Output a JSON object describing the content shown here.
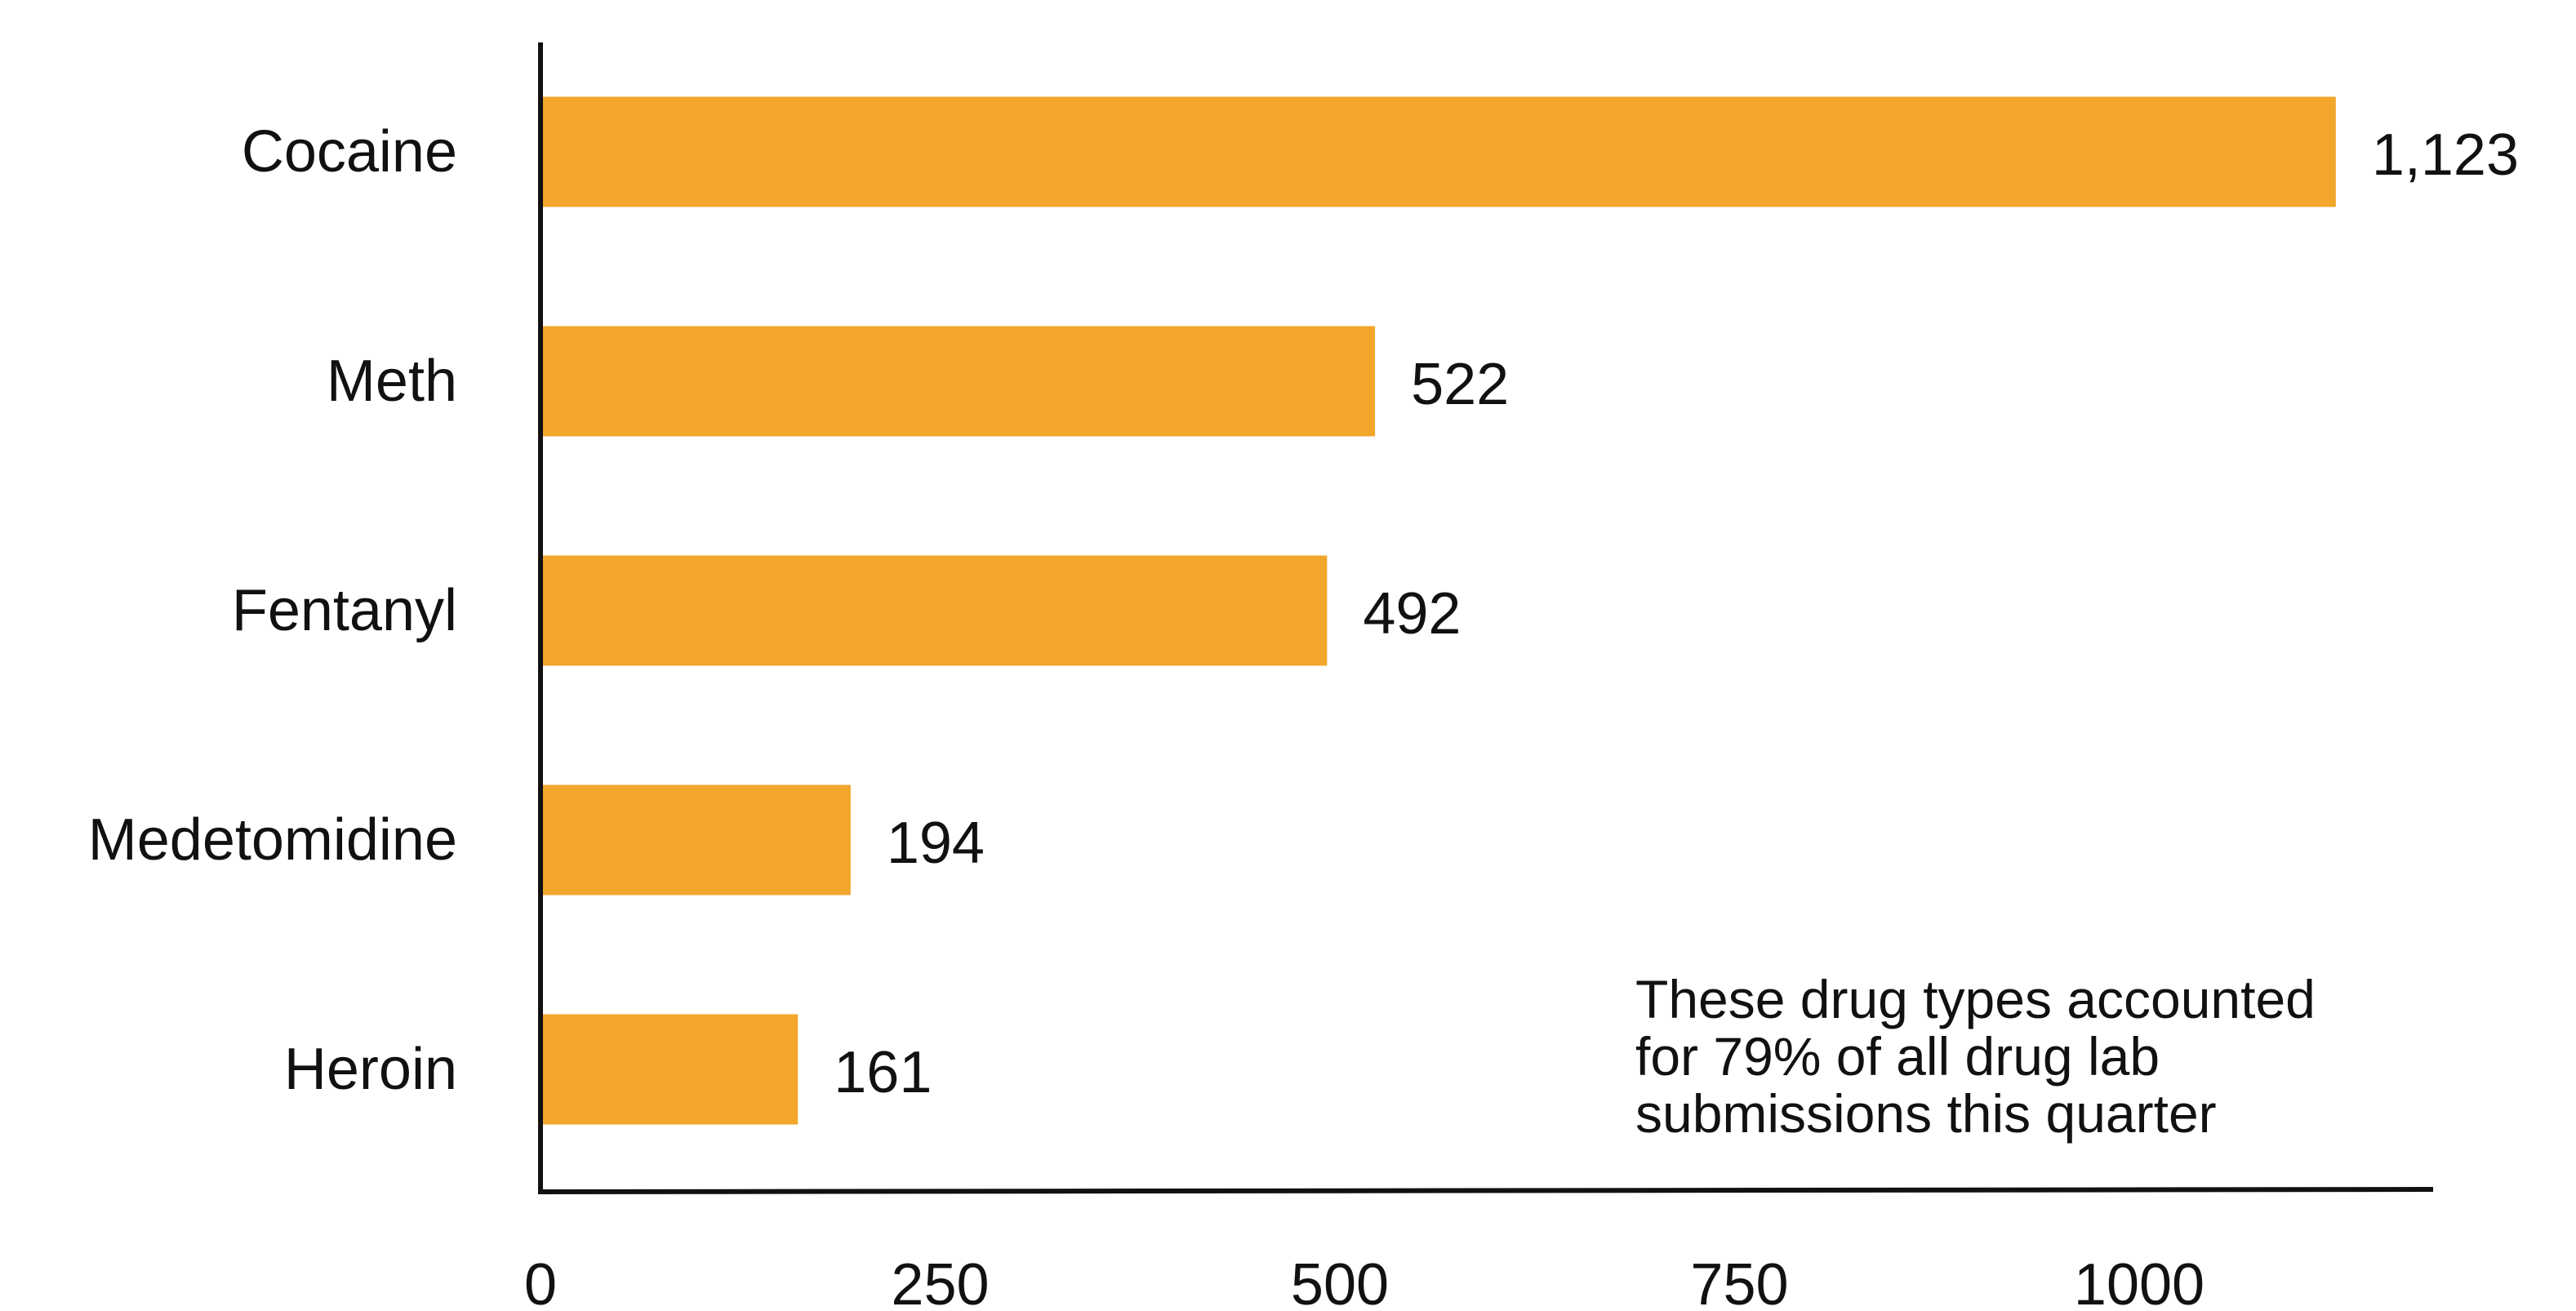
{
  "chart_data": {
    "type": "bar",
    "orientation": "horizontal",
    "title": "",
    "xlabel": "",
    "ylabel": "",
    "categories": [
      "Cocaine",
      "Meth",
      "Fentanyl",
      "Medetomidine",
      "Heroin"
    ],
    "values": [
      1123,
      522,
      492,
      194,
      161
    ],
    "data_labels": [
      "1,123",
      "522",
      "492",
      "194",
      "161"
    ],
    "xlim": [
      0,
      1180
    ],
    "x_ticks": [
      0,
      250,
      500,
      750,
      1000
    ],
    "x_tick_labels": [
      "0",
      "250",
      "500",
      "750",
      "1000"
    ],
    "grid": false,
    "legend": "none",
    "bar_color": "#F2A62B",
    "axis_color": "#111111",
    "annotation": {
      "lines": [
        "These drug types accounted",
        "for 79% of all drug lab",
        "submissions this quarter"
      ]
    }
  }
}
